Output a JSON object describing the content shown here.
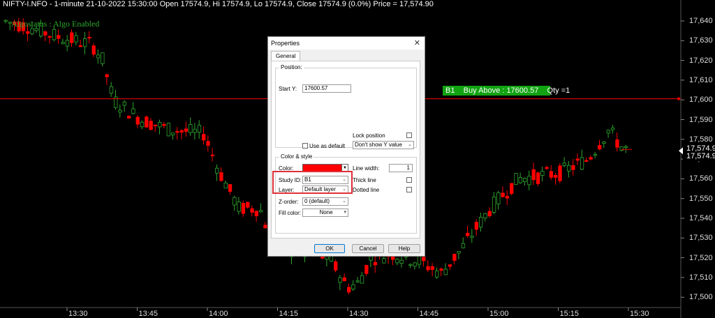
{
  "header": {
    "title": "NIFTY-I.NFO - 1-minute 21-10-2022 15:30:00 Open 17574.9, Hi 17574.9, Lo 17574.9, Close 17574.9 (0.0%)",
    "price_label": "Price = 17,574.90"
  },
  "algostatus": "Algostatus : Algo Enabled",
  "order_line": {
    "label": "B1    Buy Above : 17600.57    Qty =1",
    "value": 17600.57,
    "color": "#ff0000"
  },
  "price_boxes": [
    "17,574.9",
    "17,574.9"
  ],
  "axis": {
    "y_ticks": [
      "17,640",
      "17,630",
      "17,620",
      "17,610",
      "17,600",
      "17,590",
      "17,580",
      "17,570",
      "17,560",
      "17,550",
      "17,540",
      "17,530",
      "17,520",
      "17,510",
      "17,500"
    ],
    "x_ticks": [
      "13:30",
      "13:45",
      "14:00",
      "14:15",
      "14:30",
      "14:45",
      "15:00",
      "15:15",
      "15:30"
    ]
  },
  "colors": {
    "up": "#2ea82e",
    "down": "#ff0000",
    "background": "#000000"
  },
  "dialog": {
    "title": "Properties",
    "close_glyph": "✕",
    "tab": "General",
    "position_group": "Position:",
    "start_y_label": "Start Y:",
    "start_y_value": "17600.57",
    "lock_position_label": "Lock position",
    "use_as_default_label": "Use as default",
    "show_y_value": "Don't show Y value",
    "color_style_group": "Color & style",
    "color_label": "Color:",
    "line_width_label": "Line width:",
    "line_width_value": "1",
    "study_id_label": "Study ID:",
    "study_id_value": "B1",
    "thick_line_label": "Thick line",
    "layer_label": "Layer:",
    "layer_value": "Default layer",
    "dotted_line_label": "Dotted line",
    "z_order_label": "Z-order:",
    "z_order_value": "0 (default)",
    "fill_color_label": "Fill color:",
    "fill_color_value": "None",
    "ok": "OK",
    "cancel": "Cancel",
    "help": "Help"
  }
}
